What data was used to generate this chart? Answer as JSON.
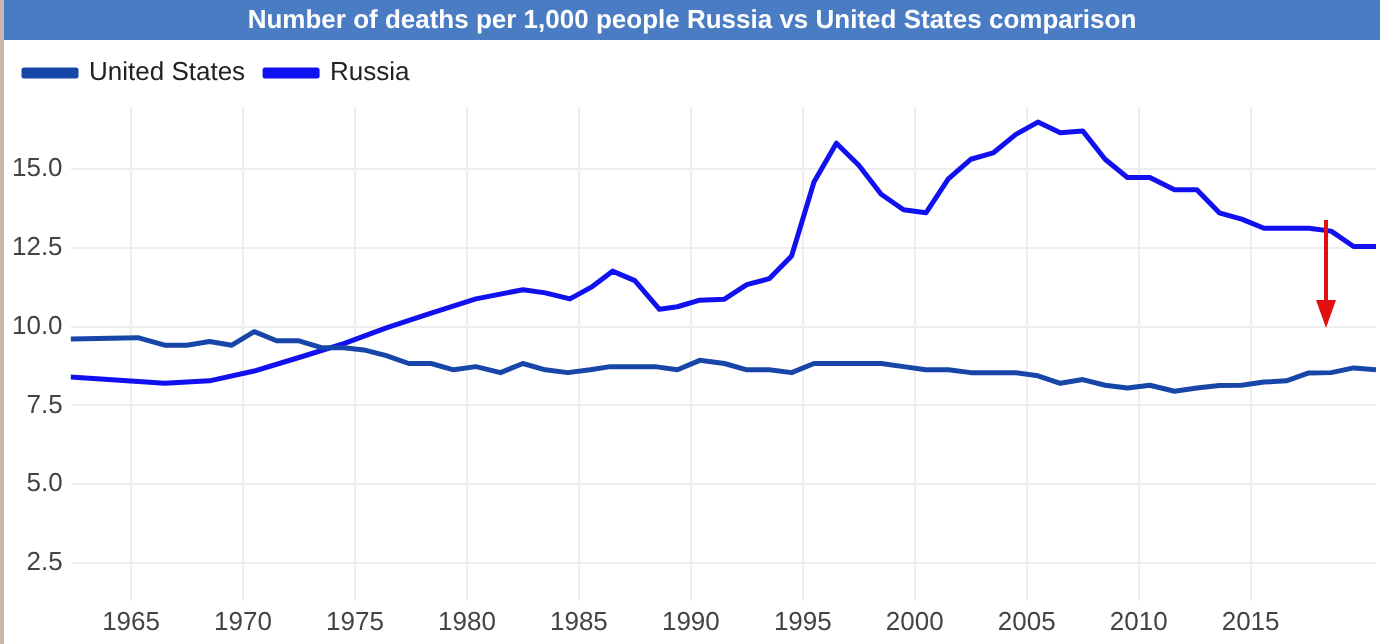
{
  "chart_data": {
    "type": "line",
    "title": "Number of deaths per 1,000 people Russia vs United States comparison",
    "series": [
      {
        "name": "United States",
        "color": "#1746a8",
        "x": [
          1962.3,
          1965.3,
          1966.5,
          1967.5,
          1968.5,
          1969.5,
          1970.5,
          1971.5,
          1972.5,
          1973.5,
          1974.5,
          1975.4,
          1976.4,
          1977.4,
          1978.4,
          1979.4,
          1980.4,
          1981.5,
          1982.5,
          1983.5,
          1984.5,
          1985.5,
          1986.4,
          1987.4,
          1988.4,
          1989.4,
          1990.4,
          1991.5,
          1992.5,
          1993.5,
          1994.5,
          1995.5,
          1996.5,
          1997.5,
          1998.5,
          1999.5,
          2000.5,
          2001.5,
          2002.5,
          2003.5,
          2004.5,
          2005.5,
          2006.5,
          2007.5,
          2008.5,
          2009.5,
          2010.5,
          2011.6,
          2012.6,
          2013.6,
          2014.6,
          2015.6,
          2016.6,
          2017.6,
          2018.6,
          2019.6,
          2020.6
        ],
        "values": [
          9.61,
          9.65,
          9.41,
          9.41,
          9.53,
          9.41,
          9.84,
          9.55,
          9.55,
          9.33,
          9.33,
          9.26,
          9.08,
          8.83,
          8.83,
          8.63,
          8.73,
          8.54,
          8.83,
          8.63,
          8.54,
          8.63,
          8.73,
          8.73,
          8.73,
          8.63,
          8.93,
          8.83,
          8.63,
          8.63,
          8.54,
          8.83,
          8.83,
          8.83,
          8.83,
          8.73,
          8.63,
          8.63,
          8.54,
          8.54,
          8.54,
          8.44,
          8.2,
          8.32,
          8.14,
          8.05,
          8.14,
          7.95,
          8.05,
          8.13,
          8.14,
          8.24,
          8.28,
          8.53,
          8.54,
          8.69,
          8.63
        ]
      },
      {
        "name": "Russia",
        "color": "#1010f0",
        "x": [
          1962.3,
          1966.5,
          1968.5,
          1970.5,
          1972.5,
          1974.5,
          1976.4,
          1978.4,
          1980.4,
          1982.5,
          1983.5,
          1984.6,
          1985.6,
          1986.5,
          1987.5,
          1988.6,
          1989.4,
          1990.4,
          1991.5,
          1992.5,
          1993.5,
          1994.5,
          1995.5,
          1996.5,
          1997.5,
          1998.5,
          1999.5,
          2000.5,
          2001.5,
          2002.5,
          2003.5,
          2004.5,
          2005.5,
          2006.5,
          2007.5,
          2008.5,
          2009.5,
          2010.5,
          2011.6,
          2012.6,
          2013.6,
          2014.6,
          2015.6,
          2016.6,
          2017.6,
          2018.6,
          2019.6,
          2020.6
        ],
        "values": [
          8.4,
          8.2,
          8.28,
          8.59,
          9.02,
          9.46,
          9.96,
          10.43,
          10.88,
          11.17,
          11.07,
          10.88,
          11.27,
          11.76,
          11.46,
          10.55,
          10.63,
          10.84,
          10.87,
          11.33,
          11.52,
          12.24,
          14.59,
          15.82,
          15.12,
          14.2,
          13.71,
          13.61,
          14.69,
          15.31,
          15.51,
          16.09,
          16.49,
          16.15,
          16.21,
          15.31,
          14.73,
          14.73,
          14.34,
          14.34,
          13.61,
          13.41,
          13.12,
          13.12,
          13.12,
          13.03,
          12.54,
          12.54
        ]
      }
    ],
    "xlim": [
      1962.3,
      2020.6
    ],
    "xticks": [
      1965,
      1970,
      1975,
      1980,
      1985,
      1990,
      1995,
      2000,
      2005,
      2010,
      2015
    ],
    "ylim": [
      1.3,
      17
    ],
    "yticks": [
      2.5,
      {
        "value": 5,
        "label": "5.0"
      },
      7.5,
      {
        "value": 10,
        "label": "10.0"
      },
      12.5,
      {
        "value": 15,
        "label": "15.0"
      }
    ],
    "grid": true,
    "legend": "top left",
    "marker": "none",
    "line_style": "solid"
  }
}
